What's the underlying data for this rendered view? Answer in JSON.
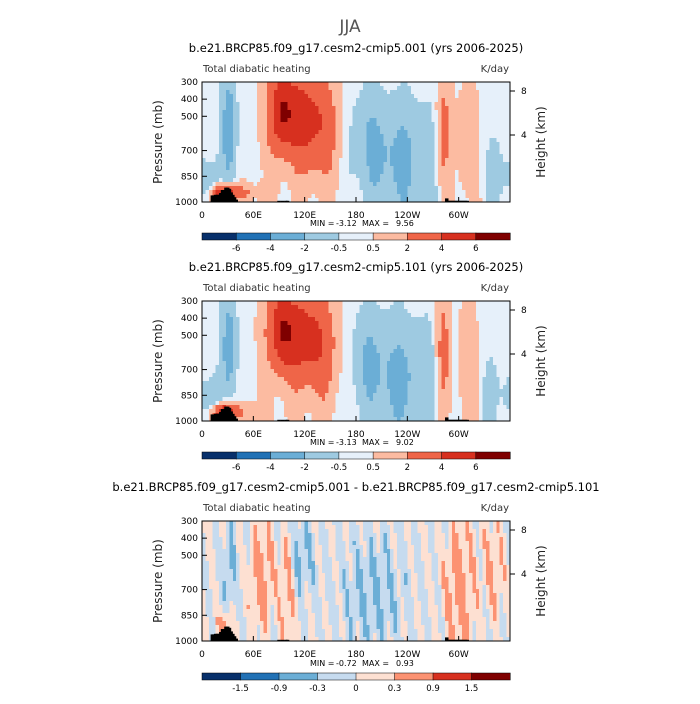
{
  "figure": {
    "title": "JJA"
  },
  "colors": {
    "levels_ctrl": [
      "#08306b",
      "#08519c",
      "#2171b5",
      "#4292c6",
      "#6baed6",
      "#9ecae1",
      "#c6dbef",
      "#e6f0fa",
      "#fde0d2",
      "#fcbba1",
      "#fc9272",
      "#ef6548",
      "#d7301f",
      "#b30000",
      "#7f0000"
    ],
    "terrain": "#000000"
  },
  "chart_data": [
    {
      "type": "heatmap",
      "title": "b.e21.BRCP85.f09_g17.cesm2-cmip5.001 (yrs 2006-2025)",
      "left_label": "Total diabatic heating",
      "right_label": "K/day",
      "ylabel": "Pressure  (mb)",
      "y2label": "Height  (km)",
      "y_ticks": [
        "300",
        "400",
        "500",
        "700",
        "850",
        "1000"
      ],
      "y_tick_values": [
        300,
        400,
        500,
        700,
        850,
        1000
      ],
      "y2_ticks": [
        "8",
        "4"
      ],
      "x_ticks": [
        "0",
        "60E",
        "120E",
        "180",
        "120W",
        "60W"
      ],
      "x_tick_values": [
        0,
        60,
        120,
        180,
        240,
        300
      ],
      "xlim": [
        0,
        360
      ],
      "ylim": [
        1000,
        300
      ],
      "min_label": "MIN =",
      "min_value": "-3.12",
      "max_label": "MAX =",
      "max_value": "9.56",
      "colorbar_levels": [
        -6,
        -4,
        -2,
        -0.5,
        0.5,
        2,
        4,
        6
      ],
      "colorbar_labels": [
        "-6",
        "-4",
        "-2",
        "-0.5",
        "0.5",
        "2",
        "4",
        "6"
      ]
    },
    {
      "type": "heatmap",
      "title": "b.e21.BRCP85.f09_g17.cesm2-cmip5.101 (yrs 2006-2025)",
      "left_label": "Total diabatic heating",
      "right_label": "K/day",
      "ylabel": "Pressure  (mb)",
      "y2label": "Height  (km)",
      "y_ticks": [
        "300",
        "400",
        "500",
        "700",
        "850",
        "1000"
      ],
      "y_tick_values": [
        300,
        400,
        500,
        700,
        850,
        1000
      ],
      "y2_ticks": [
        "8",
        "4"
      ],
      "x_ticks": [
        "0",
        "60E",
        "120E",
        "180",
        "120W",
        "60W"
      ],
      "x_tick_values": [
        0,
        60,
        120,
        180,
        240,
        300
      ],
      "xlim": [
        0,
        360
      ],
      "ylim": [
        1000,
        300
      ],
      "min_label": "MIN =",
      "min_value": "-3.13",
      "max_label": "MAX =",
      "max_value": "9.02",
      "colorbar_levels": [
        -6,
        -4,
        -2,
        -0.5,
        0.5,
        2,
        4,
        6
      ],
      "colorbar_labels": [
        "-6",
        "-4",
        "-2",
        "-0.5",
        "0.5",
        "2",
        "4",
        "6"
      ]
    },
    {
      "type": "heatmap",
      "title": "b.e21.BRCP85.f09_g17.cesm2-cmip5.001 - b.e21.BRCP85.f09_g17.cesm2-cmip5.101",
      "left_label": "Total diabatic heating",
      "right_label": "K/day",
      "ylabel": "Pressure  (mb)",
      "y2label": "Height  (km)",
      "y_ticks": [
        "300",
        "400",
        "500",
        "700",
        "850",
        "1000"
      ],
      "y_tick_values": [
        300,
        400,
        500,
        700,
        850,
        1000
      ],
      "y2_ticks": [
        "8",
        "4"
      ],
      "x_ticks": [
        "0",
        "60E",
        "120E",
        "180",
        "120W",
        "60W"
      ],
      "x_tick_values": [
        0,
        60,
        120,
        180,
        240,
        300
      ],
      "xlim": [
        0,
        360
      ],
      "ylim": [
        1000,
        300
      ],
      "min_label": "MIN =",
      "min_value": "-0.72",
      "max_label": "MAX =",
      "max_value": "0.93",
      "colorbar_levels": [
        -1.5,
        -0.9,
        -0.3,
        0,
        0.3,
        0.9,
        1.5
      ],
      "colorbar_labels": [
        "-1.5",
        "-0.9",
        "-0.3",
        "0",
        "0.3",
        "0.9",
        "1.5"
      ]
    }
  ]
}
